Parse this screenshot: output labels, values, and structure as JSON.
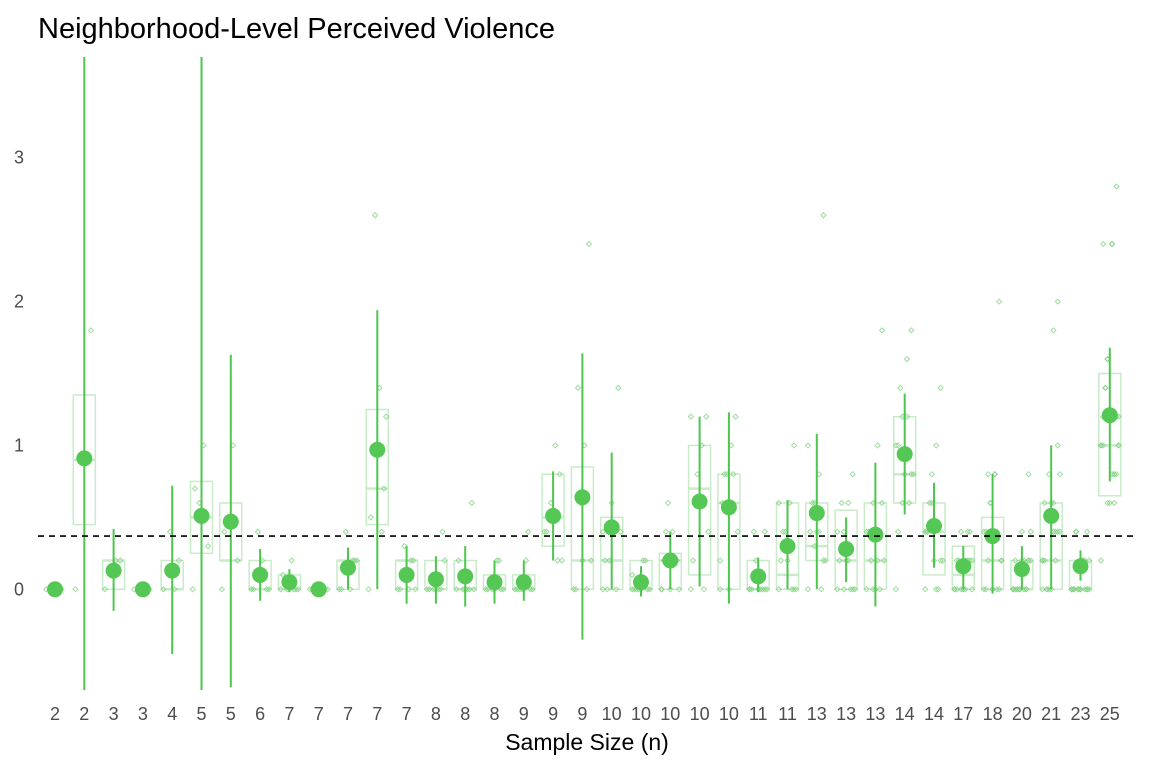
{
  "chart_data": {
    "type": "scatter",
    "title": "Neighborhood-Level Perceived Violence",
    "xlabel": "Sample Size (n)",
    "ylabel": "",
    "ylim": [
      -0.7,
      3.7
    ],
    "yticks": [
      0,
      1,
      2,
      3
    ],
    "grid": false,
    "legend": "none",
    "colors": {
      "point": "#55c755",
      "errorbar": "#4cc64c",
      "box": "#c8ebc8",
      "reference": "#000000"
    },
    "reference_line": 0.37,
    "categories": [
      "2",
      "2",
      "3",
      "3",
      "4",
      "5",
      "5",
      "6",
      "7",
      "7",
      "7",
      "7",
      "7",
      "8",
      "8",
      "8",
      "9",
      "9",
      "9",
      "10",
      "10",
      "10",
      "10",
      "10",
      "11",
      "11",
      "13",
      "13",
      "13",
      "14",
      "14",
      "17",
      "18",
      "20",
      "21",
      "23",
      "25"
    ],
    "means": [
      0.0,
      0.91,
      0.13,
      0.0,
      0.13,
      0.51,
      0.47,
      0.1,
      0.05,
      0.0,
      0.15,
      0.97,
      0.1,
      0.07,
      0.09,
      0.05,
      0.05,
      0.51,
      0.64,
      0.43,
      0.05,
      0.2,
      0.61,
      0.57,
      0.09,
      0.3,
      0.53,
      0.28,
      0.38,
      0.94,
      0.44,
      0.16,
      0.37,
      0.14,
      0.51,
      0.16,
      1.21
    ],
    "ci_low": [
      0.0,
      -0.7,
      -0.15,
      0.0,
      -0.45,
      -0.7,
      -0.68,
      -0.08,
      -0.02,
      0.0,
      0.0,
      0.0,
      -0.1,
      -0.1,
      -0.12,
      -0.1,
      -0.08,
      0.2,
      -0.35,
      0.0,
      -0.05,
      0.0,
      0.02,
      -0.1,
      -0.02,
      0.0,
      0.0,
      0.05,
      -0.12,
      0.52,
      0.15,
      0.0,
      -0.03,
      0.0,
      0.0,
      0.06,
      0.75
    ],
    "ci_high": [
      0.0,
      3.7,
      0.42,
      0.0,
      0.72,
      3.7,
      1.63,
      0.28,
      0.14,
      0.0,
      0.29,
      1.94,
      0.3,
      0.23,
      0.3,
      0.2,
      0.2,
      0.82,
      1.64,
      0.95,
      0.16,
      0.4,
      1.2,
      1.23,
      0.22,
      0.62,
      1.08,
      0.5,
      0.88,
      1.36,
      0.74,
      0.3,
      0.8,
      0.3,
      1.0,
      0.27,
      1.68
    ],
    "box_q1": [
      null,
      0.45,
      0.0,
      null,
      0.0,
      0.25,
      0.2,
      0.0,
      0.0,
      null,
      0.0,
      0.45,
      0.0,
      0.0,
      0.0,
      0.0,
      0.0,
      0.3,
      0.0,
      0.0,
      0.0,
      0.0,
      0.1,
      0.0,
      0.0,
      0.0,
      0.2,
      0.0,
      0.0,
      0.6,
      0.1,
      0.0,
      0.0,
      0.0,
      0.0,
      0.0,
      0.65
    ],
    "box_med": [
      null,
      0.9,
      0.2,
      null,
      0.0,
      0.5,
      0.2,
      0.0,
      0.0,
      null,
      0.2,
      0.7,
      0.2,
      0.0,
      0.0,
      0.0,
      0.0,
      0.5,
      0.2,
      0.2,
      0.0,
      0.2,
      0.7,
      0.6,
      0.0,
      0.1,
      0.3,
      0.2,
      0.2,
      0.8,
      0.4,
      0.1,
      0.2,
      0.0,
      0.2,
      0.0,
      1.0
    ],
    "box_q3": [
      null,
      1.35,
      0.2,
      null,
      0.2,
      0.75,
      0.6,
      0.2,
      0.1,
      null,
      0.2,
      1.25,
      0.2,
      0.2,
      0.2,
      0.1,
      0.1,
      0.8,
      0.85,
      0.5,
      0.2,
      0.25,
      1.0,
      0.8,
      0.2,
      0.6,
      0.6,
      0.55,
      0.6,
      1.2,
      0.6,
      0.3,
      0.5,
      0.2,
      0.6,
      0.2,
      1.5
    ],
    "observations": [
      [
        0,
        0
      ],
      [
        0,
        1.8,
        0.9
      ],
      [
        0,
        0.2,
        0.2
      ],
      [
        0,
        0
      ],
      [
        0,
        0.2,
        0,
        0.4
      ],
      [
        0,
        0.3,
        1.0,
        0.6,
        0.7
      ],
      [
        0,
        0.2,
        1.0,
        0.5,
        0.4
      ],
      [
        0,
        0,
        0.2,
        0.4,
        0,
        0
      ],
      [
        0,
        0,
        0.2,
        0,
        0.1,
        0,
        0
      ],
      [
        0,
        0,
        0,
        0,
        0,
        0,
        0
      ],
      [
        0,
        0.2,
        0,
        0.4,
        0,
        0.2,
        0.2
      ],
      [
        0,
        0.7,
        1.4,
        2.6,
        0.5,
        1.2,
        0.4
      ],
      [
        0,
        0.2,
        0,
        0.3,
        0,
        0,
        0.2
      ],
      [
        0,
        0.4,
        0,
        0,
        0,
        0.2,
        0,
        0
      ],
      [
        0,
        0.6,
        0,
        0,
        0.2,
        0,
        0,
        0
      ],
      [
        0,
        0,
        0.2,
        0,
        0,
        0,
        0.2,
        0
      ],
      [
        0,
        0,
        0.2,
        0,
        0,
        0,
        0.4,
        0,
        0
      ],
      [
        0.4,
        0.8,
        1.0,
        0.6,
        0.4,
        0.2,
        0.2,
        0.5,
        0.5
      ],
      [
        0,
        2.4,
        1.0,
        0.6,
        0,
        0.2,
        0,
        0.2,
        1.4
      ],
      [
        0,
        1.4,
        0.4,
        0.2,
        0.2,
        0.4,
        0,
        0.6,
        0,
        0.4
      ],
      [
        0,
        0,
        0.2,
        0,
        0,
        0,
        0.2,
        0,
        0,
        0.1
      ],
      [
        0,
        0.2,
        0.4,
        0.6,
        0.2,
        0,
        0.2,
        0,
        0.4,
        0
      ],
      [
        0,
        1.2,
        1.0,
        0.8,
        0.2,
        0.4,
        0,
        0.6,
        0.6,
        1.2
      ],
      [
        0,
        1.2,
        1.0,
        0.8,
        0.6,
        0.4,
        0.8,
        0,
        0.8,
        0.2
      ],
      [
        0,
        0.4,
        0,
        0.2,
        0,
        0,
        0,
        0,
        0.4,
        0,
        0
      ],
      [
        0,
        1.0,
        0.6,
        0.4,
        0.2,
        0,
        0,
        0.2,
        0.4,
        0.6,
        0
      ],
      [
        0,
        2.6,
        0.8,
        0.6,
        0.4,
        0.2,
        0,
        0.4,
        0.6,
        1.0,
        0.2,
        0.4,
        0.3
      ],
      [
        0,
        0.8,
        0.6,
        0.4,
        0.2,
        0,
        0,
        0.2,
        0.6,
        0.4,
        0,
        0.2,
        0
      ],
      [
        0,
        1.8,
        1.0,
        0.6,
        0.4,
        0.2,
        0,
        0,
        0.2,
        0.4,
        0.6,
        0.2,
        0
      ],
      [
        0,
        1.8,
        1.6,
        1.2,
        1.0,
        0.8,
        0.6,
        0.8,
        1.4,
        1.0,
        0.8,
        1.2,
        0.6,
        0.4
      ],
      [
        0,
        1.4,
        1.0,
        0.6,
        0.4,
        0.2,
        0,
        0.2,
        0.6,
        0.4,
        0.2,
        0,
        0.8,
        0.4
      ],
      [
        0,
        0.4,
        0.2,
        0,
        0,
        0.2,
        0.4,
        0,
        0.2,
        0,
        0.2,
        0,
        0.4,
        0.2,
        0,
        0.2,
        0
      ],
      [
        0,
        2.0,
        0.8,
        0.6,
        0.4,
        0.2,
        0,
        0,
        0.2,
        0.4,
        0,
        0.8,
        0.6,
        0,
        0.2,
        0.4,
        0,
        0.8
      ],
      [
        0,
        0.8,
        0.2,
        0,
        0,
        0.2,
        0,
        0.4,
        0,
        0,
        0.2,
        0,
        0,
        0.2,
        0.4,
        0,
        0.2,
        0,
        0,
        0.2
      ],
      [
        0,
        2.0,
        1.8,
        0.8,
        0.6,
        0.4,
        0.2,
        0,
        0,
        0.2,
        0.4,
        0.6,
        0,
        0.2,
        0.8,
        0.4,
        0.6,
        0,
        0.2,
        1.0,
        0.4
      ],
      [
        0,
        0.4,
        0.2,
        0,
        0,
        0,
        0.2,
        0,
        0.4,
        0,
        0,
        0.2,
        0,
        0,
        0.2,
        0,
        0,
        0.4,
        0,
        0,
        0.2,
        0,
        0
      ],
      [
        0.2,
        2.8,
        2.4,
        1.6,
        1.2,
        1.0,
        0.8,
        0.6,
        1.4,
        1.0,
        1.2,
        0.8,
        1.6,
        2.4,
        1.0,
        0.6,
        1.2,
        1.4,
        1.0,
        0.8,
        2.4,
        0.6,
        1.0,
        1.2,
        0.8
      ]
    ]
  }
}
